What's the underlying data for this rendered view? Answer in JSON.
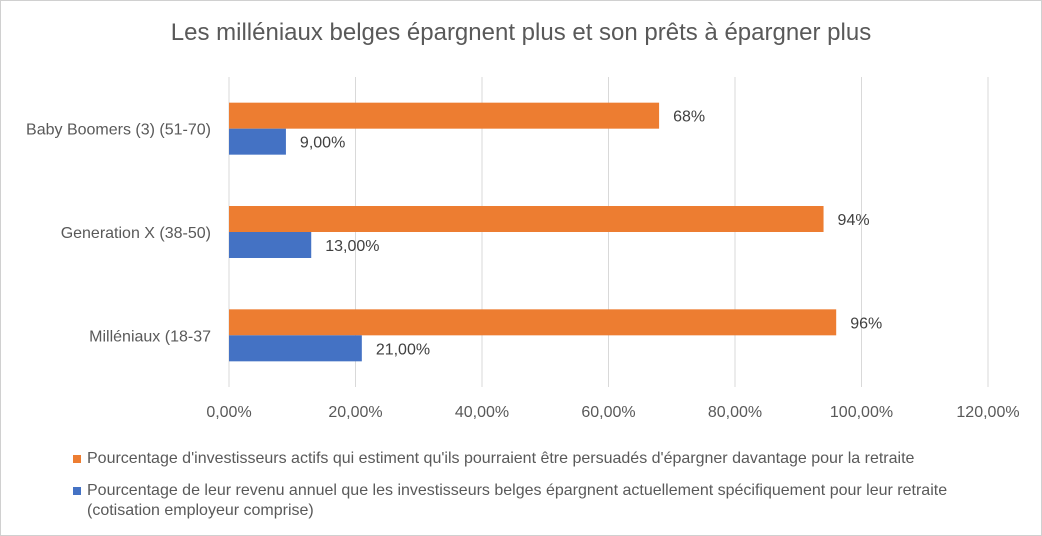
{
  "chart_data": {
    "type": "bar",
    "orientation": "horizontal",
    "title": "Les milléniaux belges épargnent plus et son prêts à épargner plus",
    "categories": [
      "Baby Boomers (3) (51-70)",
      "Generation X (38-50)",
      "Milléniaux (18-37"
    ],
    "series": [
      {
        "name": "Pourcentage d'investisseurs actifs qui estiment qu'ils pourraient être persuadés d'épargner davantage pour la retraite",
        "color": "#ED7D31",
        "values": [
          68,
          94,
          96
        ],
        "labels": [
          "68%",
          "94%",
          "96%"
        ]
      },
      {
        "name": "Pourcentage de leur revenu annuel que les investisseurs belges épargnent actuellement spécifiquement pour leur retraite (cotisation employeur comprise)",
        "color": "#4472C4",
        "values": [
          9,
          13,
          21
        ],
        "labels": [
          "9,00%",
          "13,00%",
          "21,00%"
        ]
      }
    ],
    "xlim": [
      0,
      120
    ],
    "xticks": [
      0,
      20,
      40,
      60,
      80,
      100,
      120
    ],
    "xtick_labels": [
      "0,00%",
      "20,00%",
      "40,00%",
      "60,00%",
      "80,00%",
      "100,00%",
      "120,00%"
    ],
    "grid": true,
    "legend_position": "bottom"
  }
}
